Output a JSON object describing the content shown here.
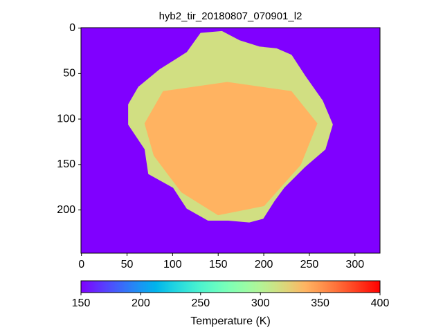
{
  "chart_data": {
    "type": "image",
    "title": "hyb2_tir_20180807_070901_l2",
    "colormap": "rainbow",
    "xlim": [
      -0.5,
      327.5
    ],
    "ylim": [
      -0.5,
      247.5
    ],
    "y_inverted": true,
    "xticks": [
      0,
      50,
      100,
      150,
      200,
      250,
      300
    ],
    "yticks": [
      0,
      50,
      100,
      150,
      200
    ],
    "background_temperature": 150,
    "regions": [
      {
        "outline": [
          [
            116,
            27
          ],
          [
            131,
            6
          ],
          [
            154,
            4
          ],
          [
            173,
            14
          ],
          [
            195,
            21
          ],
          [
            214,
            23
          ],
          [
            230,
            30
          ],
          [
            245,
            53
          ],
          [
            264,
            80
          ],
          [
            275,
            106
          ],
          [
            267,
            133
          ],
          [
            245,
            152
          ],
          [
            222,
            175
          ],
          [
            211,
            190
          ],
          [
            199,
            209
          ],
          [
            184,
            213
          ],
          [
            161,
            211
          ],
          [
            139,
            211
          ],
          [
            116,
            198
          ],
          [
            101,
            175
          ],
          [
            74,
            160
          ],
          [
            70,
            133
          ],
          [
            52,
            106
          ],
          [
            52,
            84
          ],
          [
            63,
            65
          ],
          [
            86,
            46
          ],
          [
            105,
            34
          ]
        ],
        "temperature": 315
      },
      {
        "outline": [
          [
            90,
            70
          ],
          [
            160,
            60
          ],
          [
            230,
            70
          ],
          [
            258,
            105
          ],
          [
            240,
            150
          ],
          [
            200,
            195
          ],
          [
            150,
            205
          ],
          [
            110,
            180
          ],
          [
            80,
            140
          ],
          [
            70,
            105
          ]
        ],
        "temperature": 338
      }
    ],
    "colorbar": {
      "label": "Temperature (K)",
      "clim": [
        150,
        400
      ],
      "ticks": [
        150,
        200,
        250,
        300,
        350,
        400
      ]
    }
  }
}
